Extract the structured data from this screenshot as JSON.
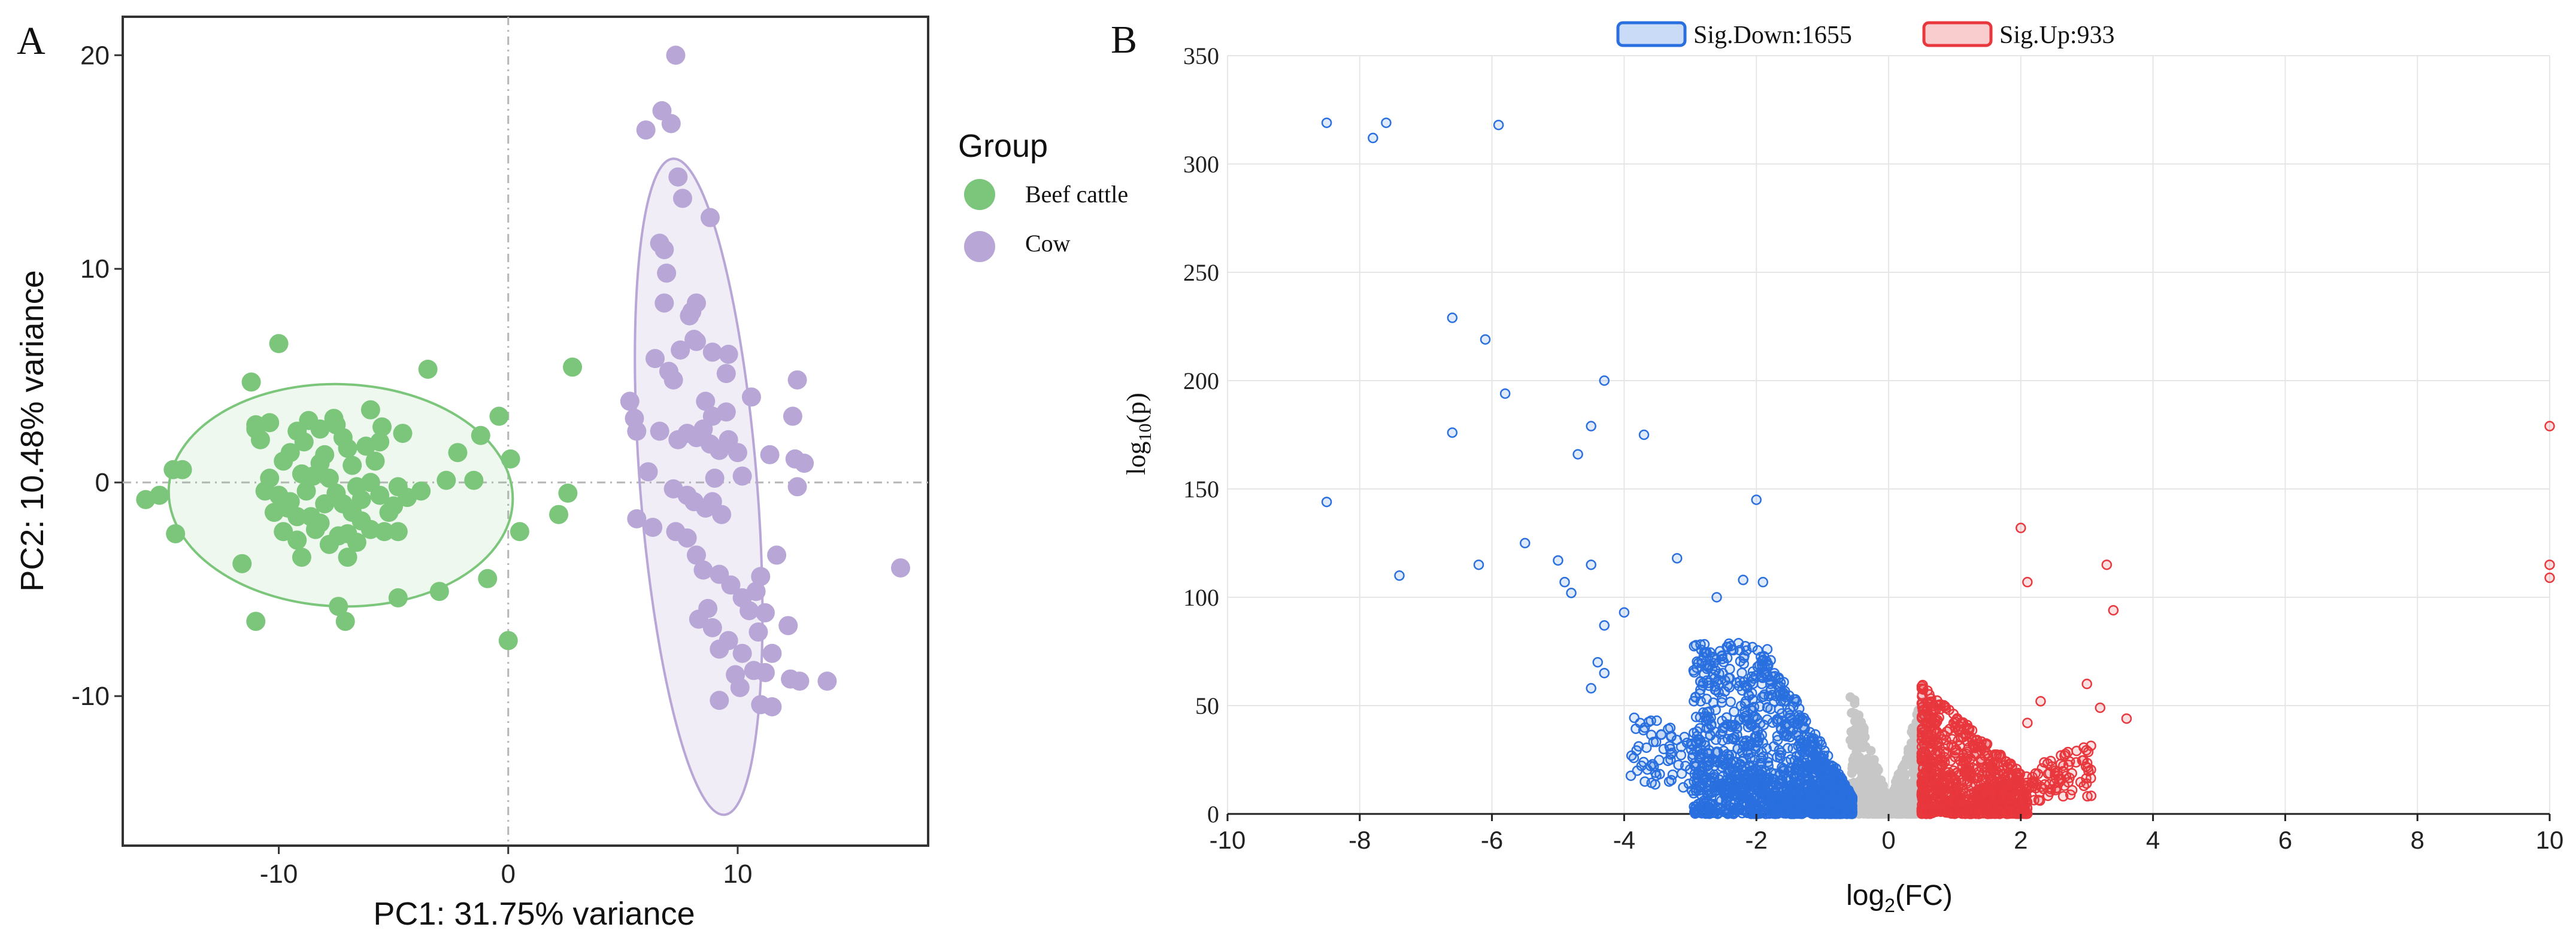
{
  "colors": {
    "beef": "#7cc67c",
    "cow": "#b8a6d6",
    "down": "#2a6fe0",
    "up": "#e8383d",
    "ns": "#c7c7c7",
    "grid": "#e6e6e6"
  },
  "chart_data": [
    {
      "panel_label": "A",
      "type": "scatter",
      "title": "",
      "xlabel": "PC1: 31.75% variance",
      "ylabel": "PC2: 10.48% variance",
      "xlim": [
        -16.8,
        18.3
      ],
      "ylim": [
        -17.0,
        21.8
      ],
      "x_ticks": [
        -10,
        0,
        10
      ],
      "y_ticks": [
        -10,
        0,
        10,
        20
      ],
      "legend_title": "Group",
      "series": [
        {
          "name": "Beef cattle",
          "ellipse": {
            "cx": -7.3,
            "cy": -0.6,
            "rx": 7.5,
            "ry": 5.2,
            "angle": 2
          },
          "points": [
            [
              -10.0,
              6.5
            ],
            [
              -11.2,
              4.7
            ],
            [
              -11.0,
              2.7
            ],
            [
              -11.0,
              2.5
            ],
            [
              -14.6,
              0.6
            ],
            [
              -14.2,
              0.6
            ],
            [
              -15.2,
              -0.6
            ],
            [
              -15.8,
              -0.8
            ],
            [
              -14.5,
              -2.4
            ],
            [
              -11.6,
              -3.8
            ],
            [
              -11.0,
              -6.5
            ],
            [
              -7.4,
              -5.8
            ],
            [
              -7.1,
              -6.5
            ],
            [
              -4.8,
              -5.4
            ],
            [
              -3.0,
              -5.1
            ],
            [
              -0.9,
              -4.5
            ],
            [
              0.0,
              -7.4
            ],
            [
              0.5,
              -2.3
            ],
            [
              2.2,
              -1.5
            ],
            [
              2.6,
              -0.5
            ],
            [
              2.8,
              5.4
            ],
            [
              -1.5,
              0.1
            ],
            [
              -1.2,
              2.2
            ],
            [
              -0.4,
              3.1
            ],
            [
              0.1,
              1.1
            ],
            [
              -2.2,
              1.4
            ],
            [
              -2.7,
              0.1
            ],
            [
              -3.5,
              5.3
            ],
            [
              -4.6,
              2.3
            ],
            [
              -5.5,
              2.6
            ],
            [
              -6.0,
              3.4
            ],
            [
              -7.0,
              1.6
            ],
            [
              -7.5,
              2.7
            ],
            [
              -8.2,
              2.5
            ],
            [
              -8.7,
              2.9
            ],
            [
              -9.2,
              2.4
            ],
            [
              -10.4,
              2.8
            ],
            [
              -9.5,
              1.4
            ],
            [
              -9.8,
              1.0
            ],
            [
              -10.4,
              0.2
            ],
            [
              -10.0,
              -0.6
            ],
            [
              -9.6,
              -1.2
            ],
            [
              -9.2,
              -1.6
            ],
            [
              -8.8,
              -0.4
            ],
            [
              -8.5,
              0.3
            ],
            [
              -8.2,
              0.9
            ],
            [
              -8.0,
              1.3
            ],
            [
              -7.8,
              0.2
            ],
            [
              -7.5,
              -0.5
            ],
            [
              -7.2,
              -1.0
            ],
            [
              -6.8,
              -1.4
            ],
            [
              -6.4,
              -0.8
            ],
            [
              -6.0,
              0.0
            ],
            [
              -5.6,
              -0.6
            ],
            [
              -5.2,
              -1.4
            ],
            [
              -4.8,
              -0.2
            ],
            [
              -4.4,
              -0.7
            ],
            [
              -4.8,
              -2.3
            ],
            [
              -5.4,
              -2.3
            ],
            [
              -6.0,
              -2.2
            ],
            [
              -6.6,
              -2.8
            ],
            [
              -7.0,
              -2.4
            ],
            [
              -7.4,
              -2.5
            ],
            [
              -7.8,
              -2.9
            ],
            [
              -8.2,
              -1.9
            ],
            [
              -8.6,
              -1.6
            ],
            [
              -9.2,
              -2.7
            ],
            [
              -9.8,
              -2.3
            ],
            [
              -10.2,
              -1.4
            ],
            [
              -10.6,
              -0.4
            ],
            [
              -9.0,
              0.4
            ],
            [
              -8.0,
              -1.0
            ],
            [
              -6.8,
              0.8
            ],
            [
              -6.2,
              1.7
            ],
            [
              -5.6,
              1.9
            ],
            [
              -7.2,
              2.1
            ],
            [
              -8.9,
              1.9
            ],
            [
              -9.5,
              -0.9
            ],
            [
              -6.4,
              -1.8
            ],
            [
              -5.0,
              -1.1
            ],
            [
              -3.8,
              -0.4
            ],
            [
              -10.8,
              2.0
            ],
            [
              -7.6,
              3.0
            ],
            [
              -6.6,
              -0.2
            ],
            [
              -8.4,
              -2.2
            ],
            [
              -9.0,
              -3.5
            ],
            [
              -7.0,
              -3.5
            ],
            [
              -5.8,
              1.0
            ]
          ]
        },
        {
          "name": "Cow",
          "ellipse": {
            "cx": 8.3,
            "cy": -0.2,
            "rx": 2.55,
            "ry": 15.4,
            "angle": -4.5
          },
          "points": [
            [
              7.3,
              20.0
            ],
            [
              6.0,
              16.5
            ],
            [
              6.7,
              17.4
            ],
            [
              7.1,
              16.8
            ],
            [
              7.4,
              14.3
            ],
            [
              7.6,
              13.3
            ],
            [
              8.8,
              12.4
            ],
            [
              6.6,
              11.2
            ],
            [
              6.8,
              10.9
            ],
            [
              6.9,
              9.8
            ],
            [
              6.8,
              8.4
            ],
            [
              8.2,
              8.4
            ],
            [
              8.0,
              8.0
            ],
            [
              7.9,
              7.8
            ],
            [
              8.1,
              6.7
            ],
            [
              7.5,
              6.2
            ],
            [
              8.2,
              6.6
            ],
            [
              7.0,
              5.2
            ],
            [
              6.4,
              5.8
            ],
            [
              7.2,
              4.8
            ],
            [
              8.9,
              6.1
            ],
            [
              9.6,
              6.0
            ],
            [
              9.5,
              5.1
            ],
            [
              8.6,
              3.8
            ],
            [
              8.9,
              3.1
            ],
            [
              9.5,
              3.3
            ],
            [
              10.6,
              4.0
            ],
            [
              12.6,
              4.8
            ],
            [
              12.4,
              3.1
            ],
            [
              5.3,
              3.8
            ],
            [
              5.5,
              3.0
            ],
            [
              5.6,
              2.4
            ],
            [
              6.1,
              0.5
            ],
            [
              6.6,
              2.4
            ],
            [
              7.4,
              2.0
            ],
            [
              7.8,
              2.3
            ],
            [
              8.2,
              2.1
            ],
            [
              8.5,
              2.5
            ],
            [
              8.8,
              1.8
            ],
            [
              9.2,
              1.5
            ],
            [
              9.6,
              2.0
            ],
            [
              10.0,
              1.4
            ],
            [
              10.2,
              0.3
            ],
            [
              11.4,
              1.3
            ],
            [
              12.5,
              1.1
            ],
            [
              12.9,
              0.9
            ],
            [
              12.6,
              -0.2
            ],
            [
              7.2,
              -0.3
            ],
            [
              7.8,
              -0.6
            ],
            [
              8.1,
              -0.9
            ],
            [
              8.6,
              -1.2
            ],
            [
              8.9,
              -0.9
            ],
            [
              9.3,
              -1.5
            ],
            [
              9.0,
              0.2
            ],
            [
              5.6,
              -1.7
            ],
            [
              6.3,
              -2.1
            ],
            [
              7.3,
              -2.3
            ],
            [
              7.8,
              -2.6
            ],
            [
              8.2,
              -3.4
            ],
            [
              8.5,
              -4.1
            ],
            [
              9.2,
              -4.3
            ],
            [
              9.7,
              -4.8
            ],
            [
              10.2,
              -5.4
            ],
            [
              10.5,
              -6.0
            ],
            [
              11.2,
              -6.1
            ],
            [
              11.7,
              -3.4
            ],
            [
              11.0,
              -4.4
            ],
            [
              8.7,
              -5.9
            ],
            [
              8.9,
              -6.8
            ],
            [
              9.6,
              -7.4
            ],
            [
              9.2,
              -7.8
            ],
            [
              10.2,
              -8.0
            ],
            [
              10.7,
              -8.8
            ],
            [
              11.2,
              -8.9
            ],
            [
              10.1,
              -9.6
            ],
            [
              11.5,
              -10.5
            ],
            [
              11.0,
              -10.4
            ],
            [
              9.2,
              -10.2
            ],
            [
              12.7,
              -9.3
            ],
            [
              12.2,
              -6.7
            ],
            [
              13.9,
              -9.3
            ],
            [
              17.1,
              -4.0
            ],
            [
              11.5,
              -8.0
            ],
            [
              12.3,
              -9.2
            ],
            [
              10.9,
              -7.0
            ],
            [
              9.9,
              -9.0
            ],
            [
              8.3,
              -6.4
            ],
            [
              10.8,
              -5.1
            ]
          ]
        }
      ]
    },
    {
      "panel_label": "B",
      "type": "scatter",
      "title": "",
      "xlabel": "log2(FC)",
      "xlabel_base": "log",
      "xlabel_sub": "2",
      "xlabel_rest": "(FC)",
      "ylabel": "log10(p)",
      "ylabel_base": "log",
      "ylabel_sub": "10",
      "ylabel_rest": "(p)",
      "xlim": [
        -10,
        10
      ],
      "ylim": [
        0,
        350
      ],
      "x_ticks": [
        -10,
        -8,
        -6,
        -4,
        -2,
        0,
        2,
        4,
        6,
        8,
        10
      ],
      "y_ticks": [
        0,
        50,
        100,
        150,
        200,
        250,
        300,
        350
      ],
      "grid": true,
      "legend": [
        {
          "label": "Sig.Down:1655",
          "series": "down"
        },
        {
          "label": "Sig.Up:933",
          "series": "up"
        }
      ],
      "counts": {
        "down": 1655,
        "up": 933
      },
      "outliers_down": [
        [
          -8.5,
          319
        ],
        [
          -7.6,
          319
        ],
        [
          -7.8,
          312
        ],
        [
          -5.9,
          318
        ],
        [
          -6.6,
          229
        ],
        [
          -6.1,
          219
        ],
        [
          -5.8,
          194
        ],
        [
          -4.3,
          200
        ],
        [
          -4.5,
          179
        ],
        [
          -3.7,
          175
        ],
        [
          -6.6,
          176
        ],
        [
          -4.7,
          166
        ],
        [
          -4.9,
          107
        ],
        [
          -5.0,
          117
        ],
        [
          -4.5,
          115
        ],
        [
          -5.5,
          125
        ],
        [
          -6.2,
          115
        ],
        [
          -7.4,
          110
        ],
        [
          -8.5,
          144
        ],
        [
          -3.2,
          118
        ],
        [
          -2.0,
          145
        ],
        [
          -4.3,
          87
        ],
        [
          -4.4,
          70
        ],
        [
          -4.3,
          65
        ],
        [
          -4.5,
          58
        ],
        [
          -4.8,
          102
        ],
        [
          -4.0,
          93
        ],
        [
          -2.2,
          108
        ],
        [
          -2.6,
          100
        ],
        [
          -1.9,
          107
        ]
      ],
      "outliers_up": [
        [
          10.0,
          179
        ],
        [
          10.0,
          115
        ],
        [
          10.0,
          109
        ],
        [
          2.0,
          132
        ],
        [
          2.1,
          107
        ],
        [
          3.3,
          115
        ],
        [
          3.4,
          94
        ],
        [
          3.6,
          44
        ],
        [
          3.2,
          49
        ],
        [
          3.0,
          60
        ],
        [
          2.1,
          42
        ],
        [
          2.3,
          52
        ]
      ]
    }
  ]
}
